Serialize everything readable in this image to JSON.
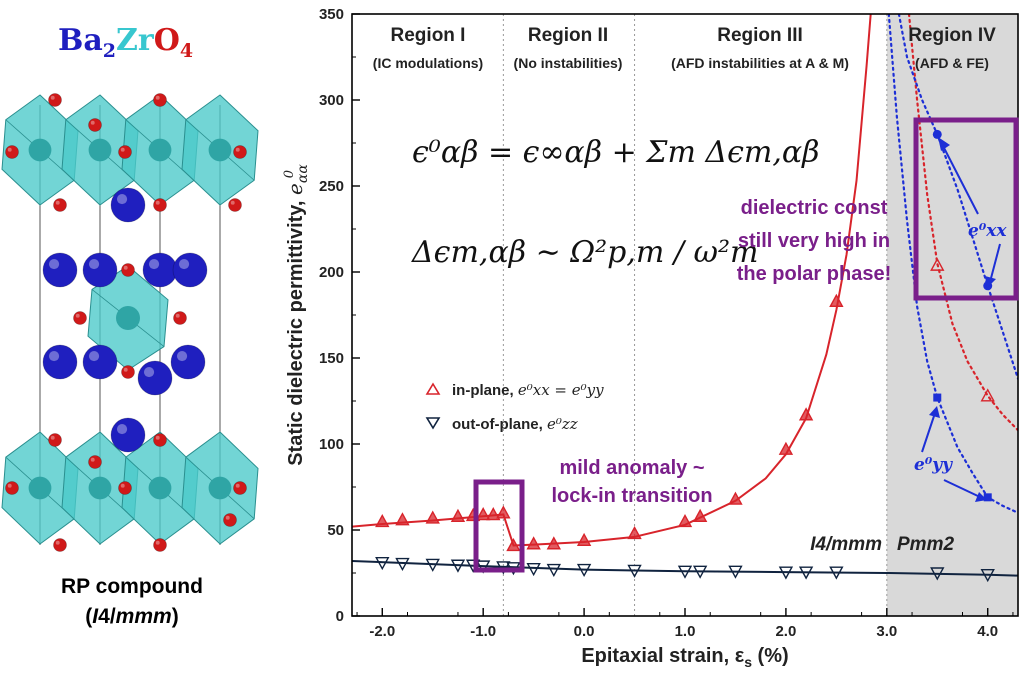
{
  "compound": {
    "formula_parts": [
      "Ba",
      "2",
      "Zr",
      "O",
      "4"
    ],
    "caption_line1": "RP compound",
    "caption_line2_open": "(",
    "caption_line2_italic": "I",
    "caption_line2_num": "4/",
    "caption_line2_mmm": "mmm",
    "caption_line2_close": ")"
  },
  "colors": {
    "barium": "#1f1fbf",
    "zirconium": "#38c7cf",
    "oxygen": "#d01919",
    "octahedron": "#4ac9c9",
    "in_plane": "#d8242b",
    "out_of_plane": "#10233f",
    "annotation": "#7a1f8a",
    "eps_blue": "#1d2fd6",
    "shade": "#d9d9d9"
  },
  "chart_data": {
    "type": "line",
    "xlabel": "Epitaxial strain, εs (%)",
    "ylabel": "Static dielectric permittivity, eαα⁰",
    "xlim": [
      -2.3,
      4.3
    ],
    "ylim": [
      0,
      350
    ],
    "xticks": [
      -2.0,
      -1.0,
      0.0,
      1.0,
      2.0,
      3.0,
      4.0
    ],
    "xtick_labels": [
      "-2.0",
      "-1.0",
      "0.0",
      "1.0",
      "2.0",
      "3.0",
      "4.0"
    ],
    "yticks": [
      0,
      50,
      100,
      150,
      200,
      250,
      300,
      350
    ],
    "ytick_labels": [
      "0",
      "50",
      "100",
      "150",
      "200",
      "250",
      "300",
      "350"
    ],
    "region_boundaries": [
      -0.8,
      0.5,
      3.0
    ],
    "shaded_from": 3.0,
    "regions": [
      {
        "name": "Region I",
        "desc": "(IC modulations)"
      },
      {
        "name": "Region II",
        "desc": "(No instabilities)"
      },
      {
        "name": "Region III",
        "desc": "(AFD instabilities at A & M)"
      },
      {
        "name": "Region IV",
        "desc": "(AFD & FE)"
      }
    ],
    "series": [
      {
        "name": "in-plane",
        "legend_math": "e⁰xx = e⁰yy",
        "marker": "triangle-up",
        "points": [
          [
            -2.0,
            55
          ],
          [
            -1.8,
            56
          ],
          [
            -1.5,
            57
          ],
          [
            -1.25,
            58
          ],
          [
            -1.1,
            58.5
          ],
          [
            -1.0,
            59
          ],
          [
            -0.9,
            59
          ],
          [
            -0.8,
            60
          ],
          [
            -0.7,
            41
          ],
          [
            -0.5,
            42
          ],
          [
            -0.3,
            42
          ],
          [
            0.0,
            44
          ],
          [
            0.5,
            48
          ],
          [
            1.0,
            55
          ],
          [
            1.15,
            58
          ],
          [
            1.5,
            68
          ],
          [
            2.0,
            97
          ],
          [
            2.2,
            117
          ],
          [
            2.5,
            183
          ],
          [
            3.5,
            204
          ],
          [
            4.0,
            128
          ]
        ]
      },
      {
        "name": "out-of-plane",
        "legend_math": "e⁰zz",
        "marker": "triangle-down",
        "points": [
          [
            -2.0,
            31
          ],
          [
            -1.8,
            30.5
          ],
          [
            -1.5,
            30
          ],
          [
            -1.25,
            29.5
          ],
          [
            -1.1,
            29.5
          ],
          [
            -1.0,
            29
          ],
          [
            -0.8,
            28.5
          ],
          [
            -0.7,
            28
          ],
          [
            -0.5,
            27.5
          ],
          [
            -0.3,
            27
          ],
          [
            0.0,
            27
          ],
          [
            0.5,
            26.5
          ],
          [
            1.0,
            26
          ],
          [
            1.15,
            26
          ],
          [
            1.5,
            26
          ],
          [
            2.0,
            25.5
          ],
          [
            2.2,
            25.5
          ],
          [
            2.5,
            25.5
          ],
          [
            3.5,
            25
          ],
          [
            4.0,
            24
          ]
        ]
      },
      {
        "name": "exx Region IV",
        "marker": "circle",
        "points": [
          [
            3.5,
            280
          ],
          [
            4.0,
            192
          ]
        ]
      },
      {
        "name": "eyy Region IV",
        "marker": "square",
        "points": [
          [
            3.5,
            127
          ],
          [
            4.0,
            69
          ]
        ]
      }
    ],
    "fit_lines": {
      "in_plane_solid": [
        [
          -2.3,
          52
        ],
        [
          -2.0,
          53.5
        ],
        [
          -1.5,
          55.5
        ],
        [
          -1.0,
          58
        ],
        [
          -0.8,
          59
        ],
        [
          -0.7,
          41
        ],
        [
          -0.5,
          41.5
        ],
        [
          0.0,
          43
        ],
        [
          0.5,
          46
        ],
        [
          1.0,
          53
        ],
        [
          1.5,
          67
        ],
        [
          1.8,
          80
        ],
        [
          2.0,
          94
        ],
        [
          2.2,
          115
        ],
        [
          2.4,
          152
        ],
        [
          2.5,
          178
        ],
        [
          2.6,
          210
        ],
        [
          2.7,
          253
        ],
        [
          2.8,
          320
        ],
        [
          2.84,
          350
        ]
      ],
      "out_of_plane_solid": [
        [
          -2.3,
          32
        ],
        [
          -1.0,
          29
        ],
        [
          0.0,
          27
        ],
        [
          1.0,
          26
        ],
        [
          2.0,
          25.5
        ],
        [
          3.0,
          25
        ],
        [
          4.0,
          24
        ],
        [
          4.3,
          23.5
        ]
      ],
      "in_plane_dotted": [
        [
          3.22,
          350
        ],
        [
          3.3,
          300
        ],
        [
          3.4,
          245
        ],
        [
          3.5,
          205
        ],
        [
          3.65,
          170
        ],
        [
          3.8,
          148
        ],
        [
          4.0,
          128
        ],
        [
          4.15,
          117
        ],
        [
          4.3,
          108
        ]
      ],
      "exx_dotted": [
        [
          3.12,
          350
        ],
        [
          3.2,
          325
        ],
        [
          3.35,
          300
        ],
        [
          3.5,
          280
        ],
        [
          3.7,
          248
        ],
        [
          3.85,
          220
        ],
        [
          4.0,
          192
        ],
        [
          4.15,
          165
        ],
        [
          4.3,
          138
        ]
      ],
      "eyy_dotted": [
        [
          3.02,
          350
        ],
        [
          3.1,
          290
        ],
        [
          3.2,
          230
        ],
        [
          3.3,
          180
        ],
        [
          3.4,
          148
        ],
        [
          3.5,
          127
        ],
        [
          3.7,
          98
        ],
        [
          3.85,
          83
        ],
        [
          4.0,
          69
        ],
        [
          4.15,
          64
        ],
        [
          4.3,
          60
        ]
      ]
    },
    "formula_line1": "ϵ⁰αβ = ϵ∞αβ + Σm Δϵm,αβ",
    "formula_line2": "Δϵm,αβ ∼ Ω²p,m / ω²m",
    "annotations": {
      "polar_line1": "dielectric const",
      "polar_line2": "still very high in",
      "polar_line3": "the polar phase!",
      "mild_line1": "mild anomaly ~",
      "mild_line2": "lock-in transition",
      "phase_left": "I4/mmm",
      "phase_right": "Pmm2",
      "exx_label": "e⁰xx",
      "eyy_label": "e⁰yy"
    }
  }
}
